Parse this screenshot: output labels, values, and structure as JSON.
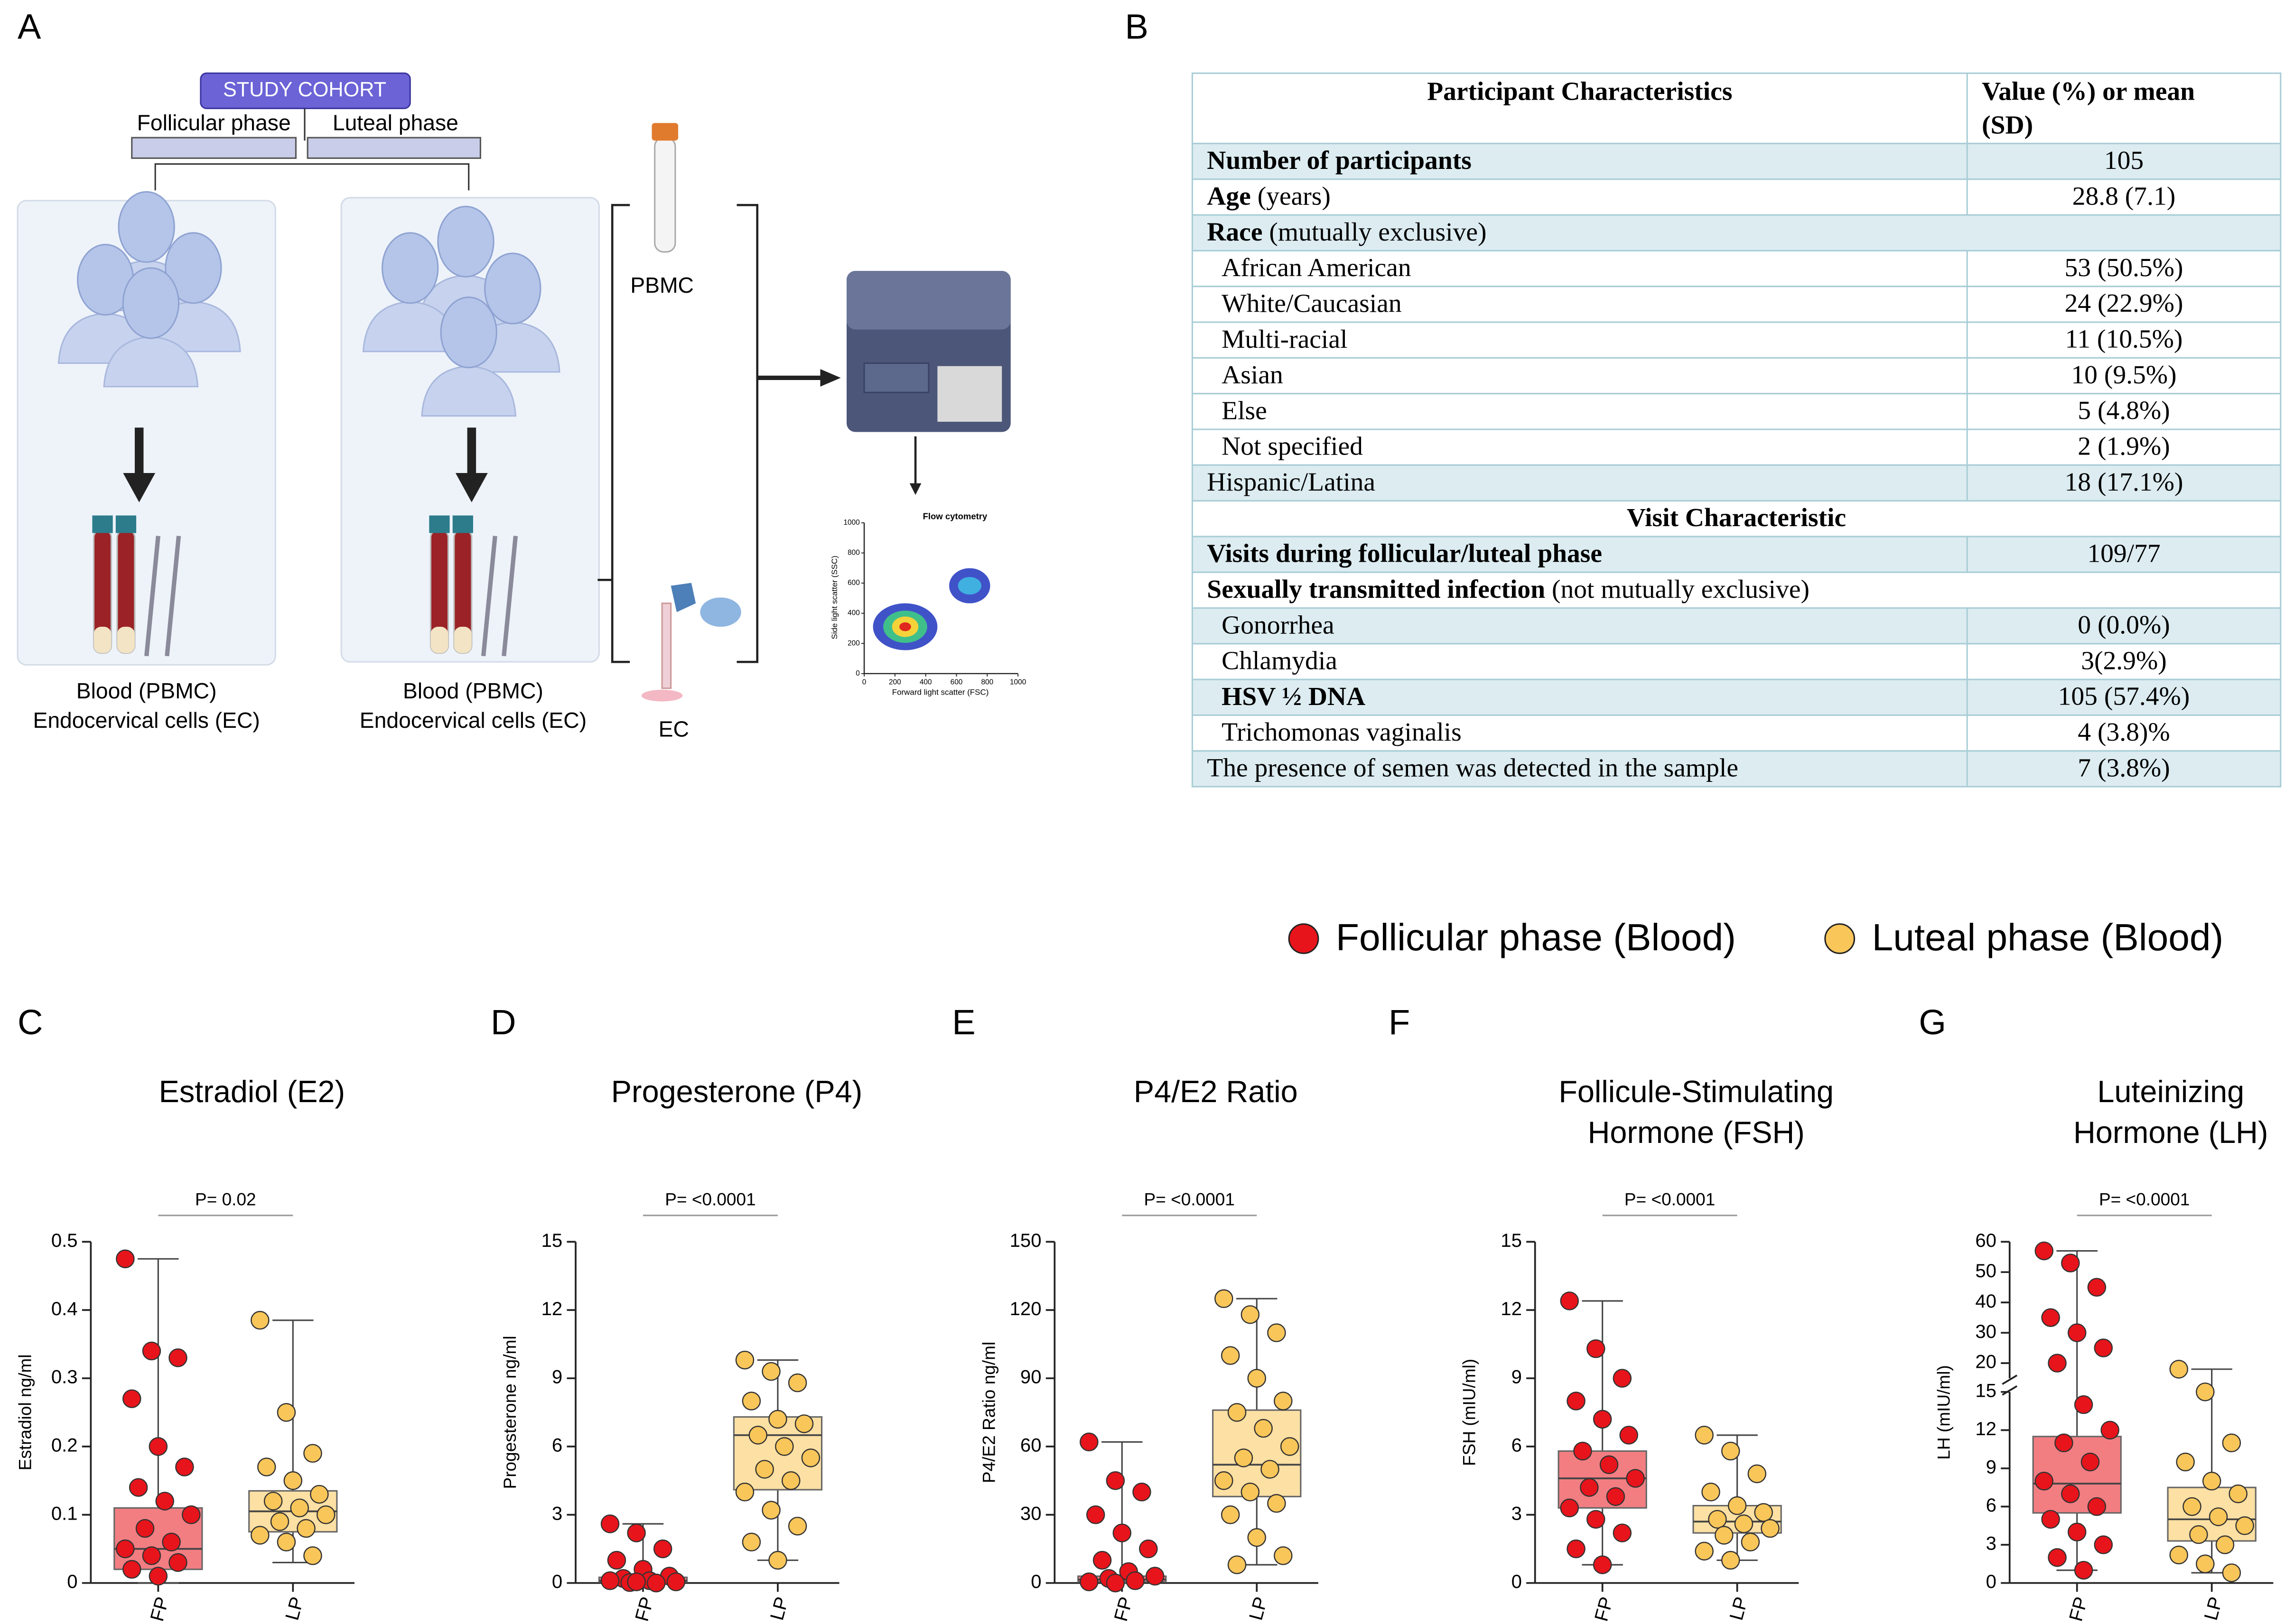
{
  "diagram": {
    "label": "A",
    "cohort": "STUDY COHORT",
    "phases": [
      "Follicular phase",
      "Luteal phase"
    ],
    "sample_labels": [
      "PBMC",
      "EC"
    ],
    "groups": [
      {
        "lines": [
          "Blood (PBMC)",
          "Endocervical cells (EC)"
        ]
      },
      {
        "lines": [
          "Blood (PBMC)",
          "Endocervical cells (EC)"
        ]
      }
    ],
    "flow_plot": {
      "title": "Flow cytometry",
      "x_label": "Forward light scatter (FSC)",
      "y_label": "Side light scatter (SSC)",
      "xlim": [
        0,
        1000
      ],
      "ylim": [
        0,
        1000
      ],
      "xticks": [
        0,
        200,
        400,
        600,
        800,
        1000
      ],
      "yticks": [
        0,
        200,
        400,
        600,
        800,
        1000
      ]
    }
  },
  "table": {
    "label": "B",
    "header": [
      "Participant Characteristics",
      [
        "Value (%) or mean",
        "(SD)"
      ]
    ],
    "rows": [
      {
        "bold": "Number of participants",
        "value": "105"
      },
      {
        "bold": "Age",
        "text": " (years)",
        "value": "28.8 (7.1)"
      },
      {
        "bold": "Race",
        "text": " (mutually exclusive)"
      },
      {
        "text": "African American",
        "value": "53 (50.5%)"
      },
      {
        "text": "White/Caucasian",
        "value": "24 (22.9%)"
      },
      {
        "text": "Multi-racial",
        "value": "11 (10.5%)"
      },
      {
        "text": "Asian",
        "value": "10 (9.5%)"
      },
      {
        "text": "Else",
        "value": "5 (4.8%)"
      },
      {
        "text": "Not specified",
        "value": "2 (1.9%)"
      },
      {
        "text": "Hispanic/Latina",
        "value": "18 (17.1%)"
      },
      {
        "heading": "Visit Characteristic"
      },
      {
        "bold": "Visits during follicular/luteal phase",
        "value": "109/77"
      },
      {
        "bold": "Sexually transmitted infection",
        "text": " (not mutually exclusive)"
      },
      {
        "text": "Gonorrhea",
        "value": "0 (0.0%)"
      },
      {
        "text": "Chlamydia",
        "value": "3(2.9%)"
      },
      {
        "bold": "HSV ½ DNA",
        "value": "105 (57.4%)"
      },
      {
        "text": "Trichomonas vaginalis",
        "value": "4 (3.8)%"
      },
      {
        "text": "The presence of semen was detected in the sample",
        "value": "7 (3.8%)"
      }
    ]
  },
  "legend": [
    {
      "name": "Follicular phase (Blood)",
      "color": "#e8141b"
    },
    {
      "name": "Luteal phase (Blood)",
      "color": "#f9c65a"
    }
  ],
  "chart_data": [
    {
      "type": "box",
      "label": "C",
      "title": [
        "Estradiol (E2)"
      ],
      "y_label": "Estradiol ng/ml",
      "p_label": "P= 0.02",
      "categories": [
        "FP",
        "LP"
      ],
      "ylim": [
        0,
        0.5
      ],
      "yticks": [
        0.0,
        0.1,
        0.2,
        0.3,
        0.4,
        0.5
      ],
      "series": [
        {
          "color": "#e8141b",
          "box": {
            "min": 0.0,
            "q1": 0.02,
            "median": 0.05,
            "q3": 0.11,
            "max": 0.475
          },
          "values": [
            0.475,
            0.34,
            0.33,
            0.27,
            0.2,
            0.17,
            0.14,
            0.12,
            0.1,
            0.08,
            0.06,
            0.05,
            0.04,
            0.03,
            0.02,
            0.01
          ]
        },
        {
          "color": "#f9c65a",
          "box": {
            "min": 0.03,
            "q1": 0.075,
            "median": 0.105,
            "q3": 0.135,
            "max": 0.385
          },
          "values": [
            0.385,
            0.25,
            0.19,
            0.17,
            0.15,
            0.13,
            0.12,
            0.11,
            0.1,
            0.09,
            0.08,
            0.07,
            0.06,
            0.04
          ]
        }
      ]
    },
    {
      "type": "box",
      "label": "D",
      "title": [
        "Progesterone (P4)"
      ],
      "y_label": "Progesterone ng/ml",
      "p_label": "P=  <0.0001",
      "categories": [
        "FP",
        "LP"
      ],
      "ylim": [
        0,
        15
      ],
      "yticks": [
        0,
        3,
        6,
        9,
        12,
        15
      ],
      "series": [
        {
          "color": "#e8141b",
          "box": {
            "min": 0,
            "q1": 0.05,
            "median": 0.1,
            "q3": 0.25,
            "max": 2.6
          },
          "values": [
            2.6,
            2.2,
            1.5,
            1.0,
            0.6,
            0.3,
            0.2,
            0.1,
            0.05,
            0.02,
            0,
            0.1,
            0.05
          ]
        },
        {
          "color": "#f9c65a",
          "box": {
            "min": 1,
            "q1": 4.1,
            "median": 6.5,
            "q3": 7.3,
            "max": 9.8
          },
          "values": [
            9.8,
            9.3,
            8.8,
            8.0,
            7.2,
            7.0,
            6.5,
            6.0,
            5.5,
            5.0,
            4.5,
            4.0,
            3.2,
            2.5,
            1.8,
            1.0
          ]
        }
      ]
    },
    {
      "type": "box",
      "label": "E",
      "title": [
        "P4/E2 Ratio"
      ],
      "y_label": "P4/E2 Ratio ng/ml",
      "p_label": "P= <0.0001",
      "categories": [
        "FP",
        "LP"
      ],
      "ylim": [
        0,
        150
      ],
      "yticks": [
        0,
        30,
        60,
        90,
        120,
        150
      ],
      "series": [
        {
          "color": "#e8141b",
          "box": {
            "min": 0,
            "q1": 0.5,
            "median": 1.5,
            "q3": 3,
            "max": 62
          },
          "values": [
            62,
            45,
            40,
            30,
            22,
            15,
            10,
            5,
            3,
            2,
            1,
            0.5,
            0
          ]
        },
        {
          "color": "#f9c65a",
          "box": {
            "min": 8,
            "q1": 38,
            "median": 52,
            "q3": 76,
            "max": 125
          },
          "values": [
            125,
            118,
            110,
            100,
            90,
            80,
            75,
            68,
            60,
            55,
            50,
            45,
            40,
            35,
            30,
            20,
            12,
            8
          ]
        }
      ]
    },
    {
      "type": "box",
      "label": "F",
      "title": [
        "Follicule-Stimulating",
        "Hormone (FSH)"
      ],
      "y_label": "FSH (mIU/ml)",
      "p_label": "P=  <0.0001",
      "categories": [
        "FP",
        "LP"
      ],
      "ylim": [
        0,
        15
      ],
      "yticks": [
        0,
        3,
        6,
        9,
        12,
        15
      ],
      "series": [
        {
          "color": "#e8141b",
          "box": {
            "min": 0.8,
            "q1": 3.3,
            "median": 4.6,
            "q3": 5.8,
            "max": 12.4
          },
          "values": [
            12.4,
            10.3,
            9,
            8,
            7.2,
            6.5,
            5.8,
            5.2,
            4.6,
            4.2,
            3.8,
            3.3,
            2.8,
            2.2,
            1.5,
            0.8
          ]
        },
        {
          "color": "#f9c65a",
          "box": {
            "min": 1,
            "q1": 2.2,
            "median": 2.7,
            "q3": 3.4,
            "max": 6.5
          },
          "values": [
            6.5,
            5.8,
            4.8,
            4.0,
            3.4,
            3.1,
            2.8,
            2.6,
            2.4,
            2.1,
            1.8,
            1.4,
            1.0
          ]
        }
      ]
    },
    {
      "type": "box",
      "label": "G",
      "title": [
        "Luteinizing",
        "Hormone (LH)"
      ],
      "y_label": "LH (mIU/ml)",
      "p_label": "P=  <0.0001",
      "categories": [
        "FP",
        "LP"
      ],
      "ylim": [
        0,
        60
      ],
      "axis_break": 15,
      "yticks": [
        0,
        3,
        6,
        9,
        12,
        15,
        20,
        30,
        40,
        50,
        60
      ],
      "series": [
        {
          "color": "#e8141b",
          "box": {
            "min": 1,
            "q1": 5.5,
            "median": 7.8,
            "q3": 11.5,
            "max": 57
          },
          "values": [
            57,
            53,
            45,
            35,
            30,
            25,
            20,
            14,
            12,
            11,
            9.5,
            8,
            7,
            6,
            5,
            4,
            3,
            2,
            1
          ]
        },
        {
          "color": "#f9c65a",
          "box": {
            "min": 0.8,
            "q1": 3.3,
            "median": 5,
            "q3": 7.5,
            "max": 18
          },
          "values": [
            18,
            15,
            11,
            9.5,
            8,
            7,
            6,
            5.2,
            4.5,
            3.8,
            3,
            2.2,
            1.5,
            0.8
          ]
        }
      ]
    }
  ]
}
